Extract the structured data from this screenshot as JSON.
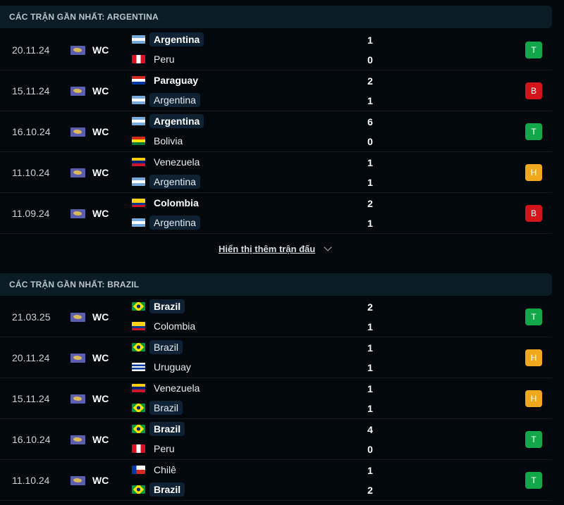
{
  "colors": {
    "win": "#12a84a",
    "loss": "#d3141a",
    "draw": "#f0a81c"
  },
  "sections": [
    {
      "title": "CÁC TRẬN GẦN NHẤT: ARGENTINA",
      "show_more": "Hiển thị thêm trận đấu",
      "matches": [
        {
          "date": "20.11.24",
          "comp": "WC",
          "home": {
            "name": "Argentina",
            "flag": "arg",
            "bold": true,
            "focus": true
          },
          "away": {
            "name": "Peru",
            "flag": "per",
            "bold": false,
            "focus": false
          },
          "home_score": "1",
          "away_score": "0",
          "result": "T"
        },
        {
          "date": "15.11.24",
          "comp": "WC",
          "home": {
            "name": "Paraguay",
            "flag": "par",
            "bold": true,
            "focus": false
          },
          "away": {
            "name": "Argentina",
            "flag": "arg",
            "bold": false,
            "focus": true
          },
          "home_score": "2",
          "away_score": "1",
          "result": "B"
        },
        {
          "date": "16.10.24",
          "comp": "WC",
          "home": {
            "name": "Argentina",
            "flag": "arg",
            "bold": true,
            "focus": true
          },
          "away": {
            "name": "Bolivia",
            "flag": "bol",
            "bold": false,
            "focus": false
          },
          "home_score": "6",
          "away_score": "0",
          "result": "T"
        },
        {
          "date": "11.10.24",
          "comp": "WC",
          "home": {
            "name": "Venezuela",
            "flag": "ven",
            "bold": false,
            "focus": false
          },
          "away": {
            "name": "Argentina",
            "flag": "arg",
            "bold": false,
            "focus": true
          },
          "home_score": "1",
          "away_score": "1",
          "result": "H"
        },
        {
          "date": "11.09.24",
          "comp": "WC",
          "home": {
            "name": "Colombia",
            "flag": "col",
            "bold": true,
            "focus": false
          },
          "away": {
            "name": "Argentina",
            "flag": "arg",
            "bold": false,
            "focus": true
          },
          "home_score": "2",
          "away_score": "1",
          "result": "B"
        }
      ]
    },
    {
      "title": "CÁC TRẬN GẦN NHẤT: BRAZIL",
      "matches": [
        {
          "date": "21.03.25",
          "comp": "WC",
          "home": {
            "name": "Brazil",
            "flag": "bra",
            "bold": true,
            "focus": true
          },
          "away": {
            "name": "Colombia",
            "flag": "col",
            "bold": false,
            "focus": false
          },
          "home_score": "2",
          "away_score": "1",
          "result": "T"
        },
        {
          "date": "20.11.24",
          "comp": "WC",
          "home": {
            "name": "Brazil",
            "flag": "bra",
            "bold": false,
            "focus": true
          },
          "away": {
            "name": "Uruguay",
            "flag": "uru",
            "bold": false,
            "focus": false
          },
          "home_score": "1",
          "away_score": "1",
          "result": "H"
        },
        {
          "date": "15.11.24",
          "comp": "WC",
          "home": {
            "name": "Venezuela",
            "flag": "ven",
            "bold": false,
            "focus": false
          },
          "away": {
            "name": "Brazil",
            "flag": "bra",
            "bold": false,
            "focus": true
          },
          "home_score": "1",
          "away_score": "1",
          "result": "H"
        },
        {
          "date": "16.10.24",
          "comp": "WC",
          "home": {
            "name": "Brazil",
            "flag": "bra",
            "bold": true,
            "focus": true
          },
          "away": {
            "name": "Peru",
            "flag": "per",
            "bold": false,
            "focus": false
          },
          "home_score": "4",
          "away_score": "0",
          "result": "T"
        },
        {
          "date": "11.10.24",
          "comp": "WC",
          "home": {
            "name": "Chilê",
            "flag": "chi",
            "bold": false,
            "focus": false
          },
          "away": {
            "name": "Brazil",
            "flag": "bra",
            "bold": true,
            "focus": true
          },
          "home_score": "1",
          "away_score": "2",
          "result": "T"
        }
      ]
    }
  ]
}
